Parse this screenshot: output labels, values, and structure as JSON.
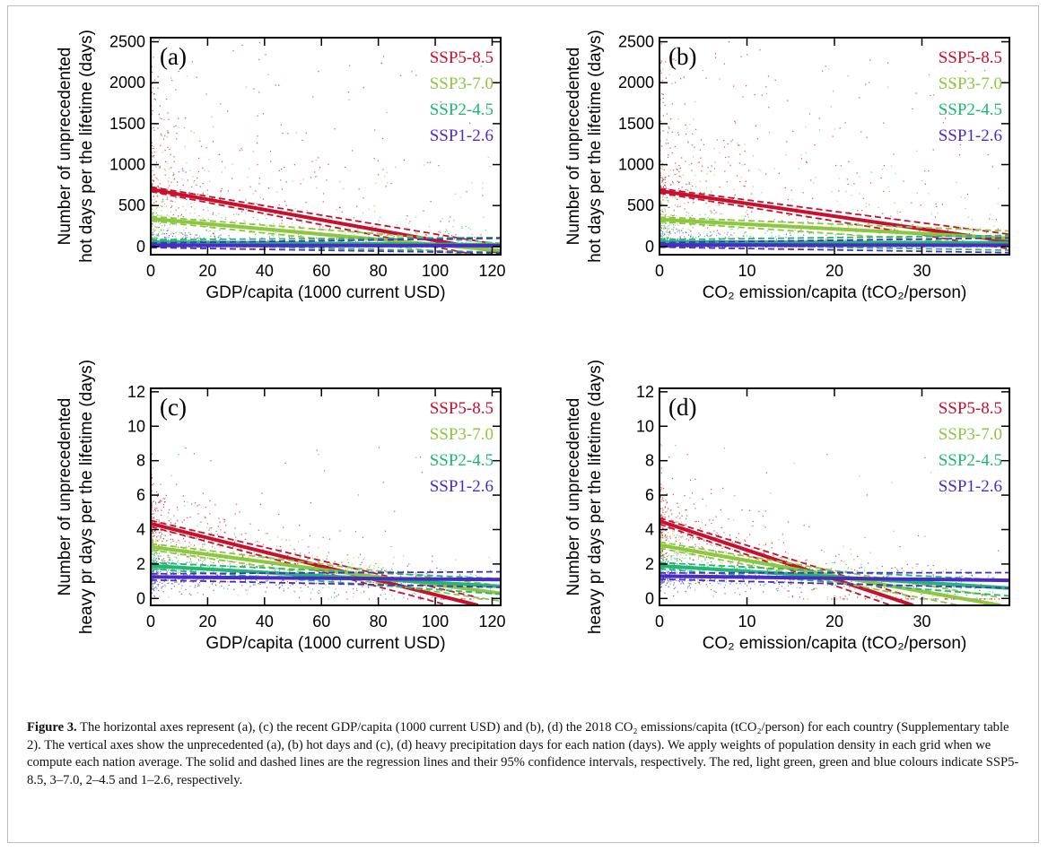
{
  "legend_colors": {
    "SSP5-8.5": "#c8102e",
    "SSP3-7.0": "#8dc63f",
    "SSP2-4.5": "#1fb873",
    "SSP1-2.6": "#4b2bc8"
  },
  "caption": {
    "label": "Figure 3.",
    "text": " The horizontal axes represent (a), (c) the recent GDP/capita (1000 current USD) and (b), (d) the 2018 CO₂ emissions/capita (tCO₂/person) for each country (Supplementary table 2). The vertical axes show the unprecedented (a), (b) hot days and (c), (d) heavy precipitation days for each nation (days). We apply weights of population density in each grid when we compute each nation average. The solid and dashed lines are the regression lines and their 95% confidence intervals, respectively. The red, light green, green and blue colours indicate SSP5-8.5, 3–7.0, 2–4.5 and 1–2.6, respectively."
  },
  "chart_data": [
    {
      "type": "scatter",
      "panel_label": "(a)",
      "xlabel": "GDP/capita (1000 current USD)",
      "ylabel": [
        "Number of  unprecedented",
        "hot days per the lifetime (days)"
      ],
      "xlim": [
        0,
        123
      ],
      "ylim": [
        -100,
        2550
      ],
      "xticks": [
        0,
        20,
        40,
        60,
        80,
        100,
        120
      ],
      "yticks": [
        0,
        500,
        1000,
        1500,
        2000,
        2500
      ],
      "legend": [
        "SSP5-8.5",
        "SSP3-7.0",
        "SSP2-4.5",
        "SSP1-2.6"
      ],
      "legend_position": "top-right",
      "regression": [
        {
          "name": "SSP5-8.5",
          "x": [
            0,
            123
          ],
          "y": [
            700,
            -70
          ]
        },
        {
          "name": "SSP3-7.0",
          "x": [
            0,
            123
          ],
          "y": [
            340,
            -50
          ]
        },
        {
          "name": "SSP2-4.5",
          "x": [
            0,
            123
          ],
          "y": [
            55,
            20
          ]
        },
        {
          "name": "SSP1-2.6",
          "x": [
            0,
            123
          ],
          "y": [
            15,
            10
          ]
        }
      ]
    },
    {
      "type": "scatter",
      "panel_label": "(b)",
      "xlabel": "CO₂ emission/capita (tCO₂/person)",
      "ylabel": [
        "Number of  unprecedented",
        "hot days per the lifetime (days)"
      ],
      "xlim": [
        0,
        40
      ],
      "ylim": [
        -100,
        2550
      ],
      "xticks": [
        0,
        10,
        20,
        30
      ],
      "yticks": [
        0,
        500,
        1000,
        1500,
        2000,
        2500
      ],
      "legend": [
        "SSP5-8.5",
        "SSP3-7.0",
        "SSP2-4.5",
        "SSP1-2.6"
      ],
      "legend_position": "top-right",
      "regression": [
        {
          "name": "SSP5-8.5",
          "x": [
            0,
            40
          ],
          "y": [
            680,
            60
          ]
        },
        {
          "name": "SSP3-7.0",
          "x": [
            0,
            40
          ],
          "y": [
            330,
            100
          ]
        },
        {
          "name": "SSP2-4.5",
          "x": [
            0,
            40
          ],
          "y": [
            55,
            45
          ]
        },
        {
          "name": "SSP1-2.6",
          "x": [
            0,
            40
          ],
          "y": [
            20,
            15
          ]
        }
      ]
    },
    {
      "type": "scatter",
      "panel_label": "(c)",
      "xlabel": "GDP/capita (1000 current USD)",
      "ylabel": [
        "Number of  unprecedented",
        "heavy pr days per the lifetime (days)"
      ],
      "xlim": [
        0,
        123
      ],
      "ylim": [
        -0.4,
        12.2
      ],
      "xticks": [
        0,
        20,
        40,
        60,
        80,
        100,
        120
      ],
      "yticks": [
        0,
        2,
        4,
        6,
        8,
        10,
        12
      ],
      "legend": [
        "SSP5-8.5",
        "SSP3-7.0",
        "SSP2-4.5",
        "SSP1-2.6"
      ],
      "legend_position": "top-right",
      "regression": [
        {
          "name": "SSP5-8.5",
          "x": [
            0,
            115
          ],
          "y": [
            4.35,
            -0.4
          ]
        },
        {
          "name": "SSP3-7.0",
          "x": [
            0,
            123
          ],
          "y": [
            3.0,
            0.3
          ]
        },
        {
          "name": "SSP2-4.5",
          "x": [
            0,
            123
          ],
          "y": [
            1.9,
            0.7
          ]
        },
        {
          "name": "SSP1-2.6",
          "x": [
            0,
            123
          ],
          "y": [
            1.25,
            1.1
          ]
        }
      ]
    },
    {
      "type": "scatter",
      "panel_label": "(d)",
      "xlabel": "CO₂ emission/capita (tCO₂/person)",
      "ylabel": [
        "Number of  unprecedented",
        "heavy pr days per the lifetime (days)"
      ],
      "xlim": [
        0,
        40
      ],
      "ylim": [
        -0.4,
        12.2
      ],
      "xticks": [
        0,
        10,
        20,
        30
      ],
      "yticks": [
        0,
        2,
        4,
        6,
        8,
        10,
        12
      ],
      "legend": [
        "SSP5-8.5",
        "SSP3-7.0",
        "SSP2-4.5",
        "SSP1-2.6"
      ],
      "legend_position": "top-right",
      "regression": [
        {
          "name": "SSP5-8.5",
          "x": [
            0,
            29
          ],
          "y": [
            4.5,
            -0.4
          ]
        },
        {
          "name": "SSP3-7.0",
          "x": [
            0,
            39
          ],
          "y": [
            3.1,
            -0.4
          ]
        },
        {
          "name": "SSP2-4.5",
          "x": [
            0,
            40
          ],
          "y": [
            1.9,
            0.6
          ]
        },
        {
          "name": "SSP1-2.6",
          "x": [
            0,
            40
          ],
          "y": [
            1.3,
            1.05
          ]
        }
      ]
    }
  ]
}
